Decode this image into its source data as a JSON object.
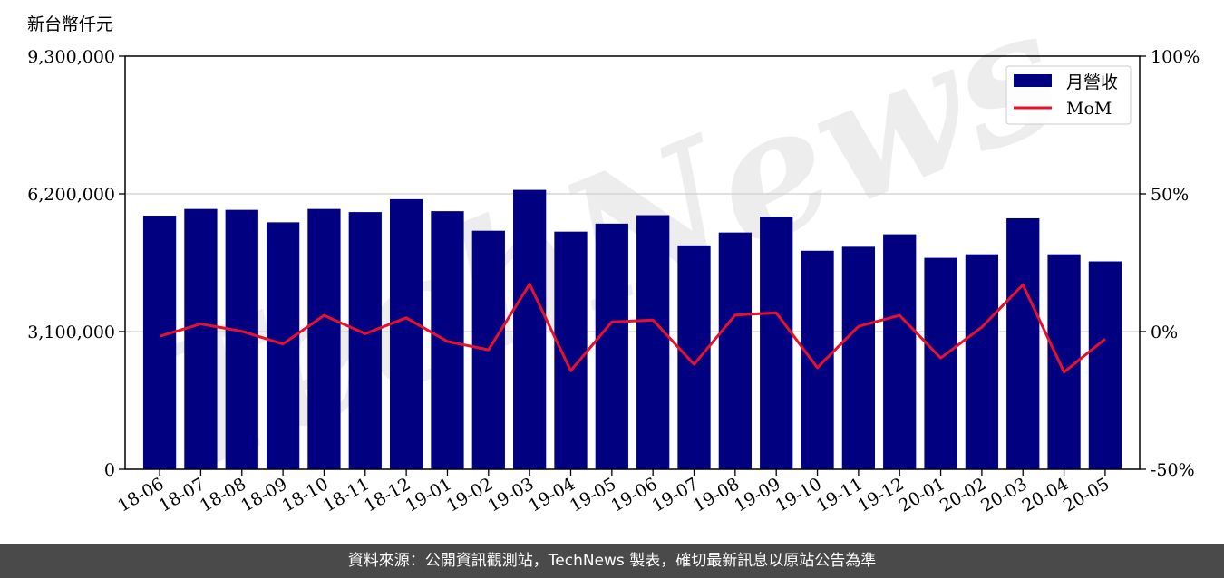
{
  "chart_data": {
    "type": "bar+line",
    "unit_label": "新台幣仟元",
    "categories": [
      "18-06",
      "18-07",
      "18-08",
      "18-09",
      "18-10",
      "18-11",
      "18-12",
      "19-01",
      "19-02",
      "19-03",
      "19-04",
      "19-05",
      "19-06",
      "19-07",
      "19-08",
      "19-09",
      "19-10",
      "19-11",
      "19-12",
      "20-01",
      "20-02",
      "20-03",
      "20-04",
      "20-05"
    ],
    "series": [
      {
        "name": "月營收",
        "axis": "left",
        "kind": "bar",
        "color": "#000080",
        "values": [
          5710000,
          5860000,
          5840000,
          5560000,
          5860000,
          5790000,
          6080000,
          5810000,
          5370000,
          6290000,
          5350000,
          5530000,
          5720000,
          5040000,
          5330000,
          5690000,
          4920000,
          5010000,
          5290000,
          4760000,
          4840000,
          5650000,
          4840000,
          4680000
        ]
      },
      {
        "name": "MoM",
        "axis": "right",
        "kind": "line",
        "color": "#e8102a",
        "values": [
          -1.7,
          2.8,
          0.1,
          -4.5,
          5.9,
          -0.8,
          5.0,
          -3.6,
          -6.6,
          17.2,
          -14.2,
          3.5,
          4.2,
          -11.9,
          6.0,
          6.8,
          -13.1,
          1.9,
          5.9,
          -9.6,
          1.6,
          17.0,
          -14.7,
          -2.7
        ]
      }
    ],
    "y_left": {
      "min": 0,
      "max": 9300000,
      "ticks": [
        0,
        3100000,
        6200000,
        9300000
      ],
      "tick_labels": [
        "0",
        "3,100,000",
        "6,200,000",
        "9,300,000"
      ]
    },
    "y_right": {
      "min": -50,
      "max": 100,
      "ticks": [
        -50,
        0,
        50,
        100
      ],
      "tick_labels": [
        "-50%",
        "0%",
        "50%",
        "100%"
      ]
    },
    "grid": "horizontal",
    "legend": {
      "position": "top-right",
      "entries": [
        "月營收",
        "MoM"
      ]
    },
    "watermark": "TechNews"
  },
  "footer": {
    "text": "資料來源：公開資訊觀測站，TechNews 製表，確切最新訊息以原站公告為準"
  }
}
